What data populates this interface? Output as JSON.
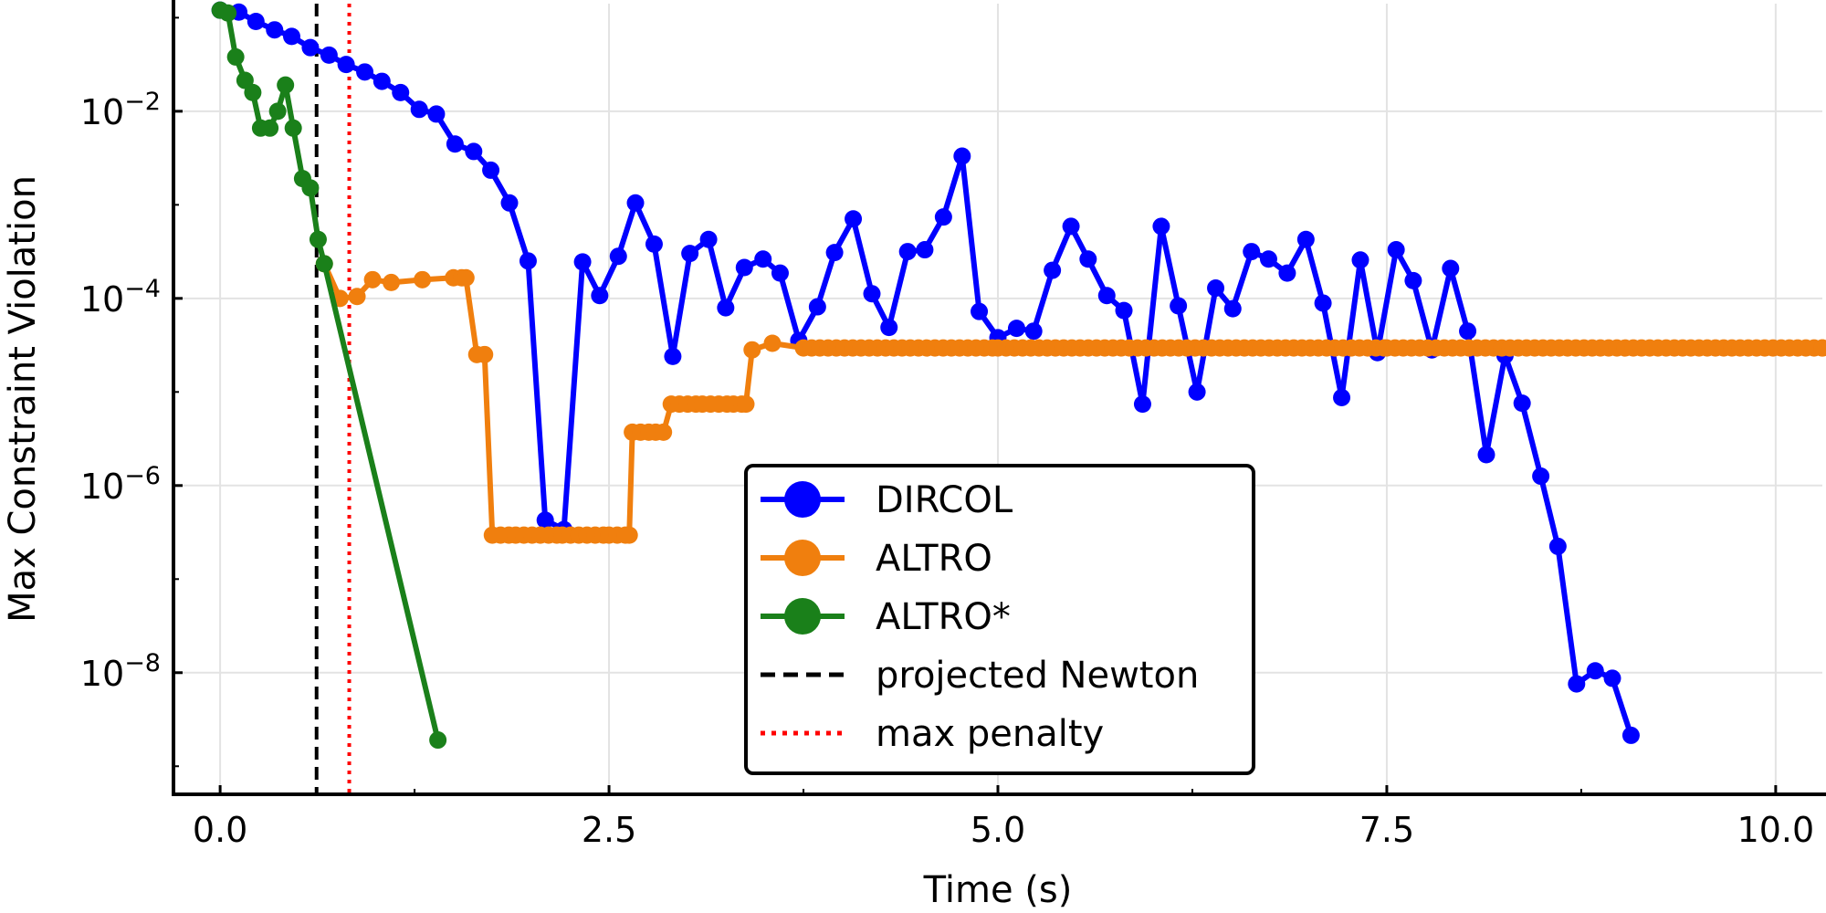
{
  "chart_data": {
    "type": "line",
    "title": "",
    "xlabel": "Time (s)",
    "ylabel": "Max Constraint Violation",
    "xlim": [
      -0.3,
      10.3
    ],
    "ylim_log10": [
      -9.3,
      -0.85
    ],
    "yscale": "log",
    "grid": true,
    "legend_position": "bottom-center",
    "x_ticks": [
      {
        "value": 0.0,
        "label": "0.0"
      },
      {
        "value": 2.5,
        "label": "2.5"
      },
      {
        "value": 5.0,
        "label": "5.0"
      },
      {
        "value": 7.5,
        "label": "7.5"
      },
      {
        "value": 10.0,
        "label": "10.0"
      }
    ],
    "y_ticks": [
      {
        "exp": -2,
        "base": "10",
        "power": "−2"
      },
      {
        "exp": -4,
        "base": "10",
        "power": "−4"
      },
      {
        "exp": -6,
        "base": "10",
        "power": "−6"
      },
      {
        "exp": -8,
        "base": "10",
        "power": "−8"
      }
    ],
    "series": [
      {
        "name": "DIRCOL",
        "color": "#0000ff",
        "style": "line-markers",
        "points_log10": [
          [
            0.0,
            -0.92
          ],
          [
            0.12,
            -0.94
          ],
          [
            0.23,
            -1.04
          ],
          [
            0.35,
            -1.13
          ],
          [
            0.46,
            -1.2
          ],
          [
            0.58,
            -1.32
          ],
          [
            0.7,
            -1.4
          ],
          [
            0.81,
            -1.5
          ],
          [
            0.93,
            -1.58
          ],
          [
            1.04,
            -1.68
          ],
          [
            1.16,
            -1.8
          ],
          [
            1.28,
            -1.98
          ],
          [
            1.39,
            -2.03
          ],
          [
            1.51,
            -2.35
          ],
          [
            1.63,
            -2.43
          ],
          [
            1.74,
            -2.63
          ],
          [
            1.86,
            -2.98
          ],
          [
            1.98,
            -3.6
          ],
          [
            2.09,
            -6.37
          ],
          [
            2.21,
            -6.47
          ],
          [
            2.33,
            -3.61
          ],
          [
            2.44,
            -3.97
          ],
          [
            2.56,
            -3.55
          ],
          [
            2.67,
            -2.98
          ],
          [
            2.79,
            -3.42
          ],
          [
            2.91,
            -4.62
          ],
          [
            3.02,
            -3.52
          ],
          [
            3.14,
            -3.37
          ],
          [
            3.25,
            -4.1
          ],
          [
            3.37,
            -3.67
          ],
          [
            3.49,
            -3.58
          ],
          [
            3.6,
            -3.73
          ],
          [
            3.72,
            -4.45
          ],
          [
            3.84,
            -4.09
          ],
          [
            3.95,
            -3.51
          ],
          [
            4.07,
            -3.15
          ],
          [
            4.19,
            -3.95
          ],
          [
            4.3,
            -4.31
          ],
          [
            4.42,
            -3.5
          ],
          [
            4.53,
            -3.48
          ],
          [
            4.65,
            -3.13
          ],
          [
            4.77,
            -2.48
          ],
          [
            4.88,
            -4.14
          ],
          [
            5.0,
            -4.42
          ],
          [
            5.12,
            -4.32
          ],
          [
            5.23,
            -4.35
          ],
          [
            5.35,
            -3.7
          ],
          [
            5.47,
            -3.23
          ],
          [
            5.58,
            -3.58
          ],
          [
            5.7,
            -3.97
          ],
          [
            5.81,
            -4.13
          ],
          [
            5.93,
            -5.13
          ],
          [
            6.05,
            -3.23
          ],
          [
            6.16,
            -4.08
          ],
          [
            6.28,
            -5.0
          ],
          [
            6.4,
            -3.89
          ],
          [
            6.51,
            -4.11
          ],
          [
            6.63,
            -3.5
          ],
          [
            6.74,
            -3.58
          ],
          [
            6.86,
            -3.73
          ],
          [
            6.98,
            -3.37
          ],
          [
            7.09,
            -4.05
          ],
          [
            7.21,
            -5.06
          ],
          [
            7.33,
            -3.59
          ],
          [
            7.44,
            -4.58
          ],
          [
            7.56,
            -3.48
          ],
          [
            7.67,
            -3.81
          ],
          [
            7.79,
            -4.55
          ],
          [
            7.91,
            -3.68
          ],
          [
            8.02,
            -4.35
          ],
          [
            8.14,
            -5.67
          ],
          [
            8.26,
            -4.61
          ],
          [
            8.37,
            -5.12
          ],
          [
            8.49,
            -5.9
          ],
          [
            8.6,
            -6.65
          ],
          [
            8.72,
            -8.12
          ],
          [
            8.84,
            -7.98
          ],
          [
            8.95,
            -8.06
          ],
          [
            9.07,
            -8.67
          ]
        ]
      },
      {
        "name": "ALTRO",
        "color": "#f07f0e",
        "style": "line-markers",
        "points_log10": [
          [
            0.67,
            -3.63
          ],
          [
            0.77,
            -4.0
          ],
          [
            0.88,
            -3.98
          ],
          [
            0.98,
            -3.8
          ],
          [
            1.1,
            -3.83
          ],
          [
            1.3,
            -3.8
          ],
          [
            1.5,
            -3.78
          ],
          [
            1.58,
            -3.78
          ],
          [
            1.65,
            -4.6
          ],
          [
            1.7,
            -4.6
          ],
          [
            1.75,
            -6.53
          ],
          [
            1.9,
            -6.53
          ],
          [
            2.2,
            -6.53
          ],
          [
            2.5,
            -6.53
          ],
          [
            2.63,
            -6.53
          ],
          [
            2.65,
            -5.43
          ],
          [
            2.8,
            -5.43
          ],
          [
            2.85,
            -5.43
          ],
          [
            2.9,
            -5.13
          ],
          [
            3.1,
            -5.13
          ],
          [
            3.3,
            -5.13
          ],
          [
            3.38,
            -5.13
          ],
          [
            3.42,
            -4.55
          ],
          [
            3.55,
            -4.48
          ],
          [
            3.75,
            -4.53
          ],
          [
            5.0,
            -4.53
          ],
          [
            7.5,
            -4.53
          ],
          [
            10.3,
            -4.53
          ]
        ]
      },
      {
        "name": "ALTRO*",
        "color": "#1a801a",
        "style": "line-markers",
        "points_log10": [
          [
            0.0,
            -0.92
          ],
          [
            0.05,
            -0.95
          ],
          [
            0.1,
            -1.42
          ],
          [
            0.16,
            -1.67
          ],
          [
            0.21,
            -1.8
          ],
          [
            0.26,
            -2.18
          ],
          [
            0.32,
            -2.18
          ],
          [
            0.37,
            -2.0
          ],
          [
            0.42,
            -1.72
          ],
          [
            0.47,
            -2.18
          ],
          [
            0.53,
            -2.72
          ],
          [
            0.58,
            -2.82
          ],
          [
            0.63,
            -3.37
          ],
          [
            0.67,
            -3.63
          ],
          [
            1.4,
            -8.72
          ]
        ]
      }
    ],
    "reference_lines": [
      {
        "name": "projected Newton",
        "x": 0.62,
        "color": "#000000",
        "dash": "dashed"
      },
      {
        "name": "max penalty",
        "x": 0.83,
        "color": "#ff0000",
        "dash": "dotted"
      }
    ]
  }
}
